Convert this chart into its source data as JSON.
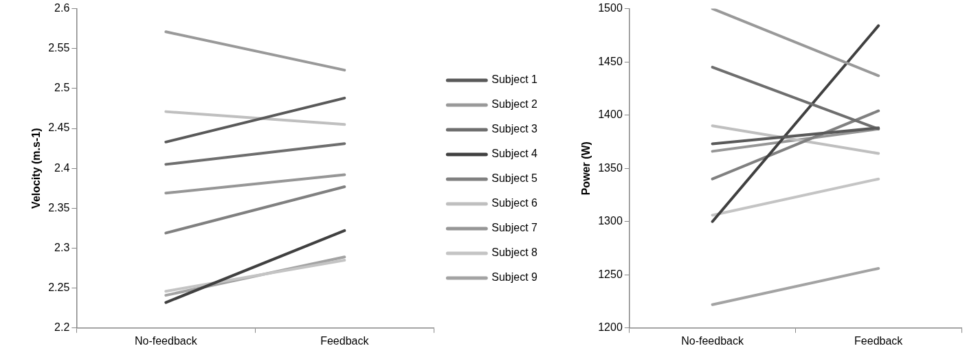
{
  "chart_data": [
    {
      "type": "line",
      "ylabel": "Velocity (m.s-1)",
      "categories": [
        "No-feedback",
        "Feedback"
      ],
      "ylim": [
        2.2,
        2.6
      ],
      "yticks": [
        2.2,
        2.25,
        2.3,
        2.35,
        2.4,
        2.45,
        2.5,
        2.55,
        2.6
      ],
      "grid": false,
      "legend": "right",
      "marker": "none",
      "line_style": "solid",
      "series": [
        {
          "name": "Subject 1",
          "color": "#595959",
          "values": [
            2.433,
            2.488
          ]
        },
        {
          "name": "Subject 2",
          "color": "#999999",
          "values": [
            2.571,
            2.523
          ]
        },
        {
          "name": "Subject 3",
          "color": "#6e6e6e",
          "values": [
            2.405,
            2.431
          ]
        },
        {
          "name": "Subject 4",
          "color": "#404040",
          "values": [
            2.232,
            2.322
          ]
        },
        {
          "name": "Subject 5",
          "color": "#808080",
          "values": [
            2.319,
            2.377
          ]
        },
        {
          "name": "Subject 6",
          "color": "#bfbfbf",
          "values": [
            2.471,
            2.455
          ]
        },
        {
          "name": "Subject 7",
          "color": "#969696",
          "values": [
            2.369,
            2.392
          ]
        },
        {
          "name": "Subject 8",
          "color": "#c4c4c4",
          "values": [
            2.246,
            2.285
          ]
        },
        {
          "name": "Subject 9",
          "color": "#a3a3a3",
          "values": [
            2.241,
            2.289
          ]
        }
      ]
    },
    {
      "type": "line",
      "ylabel": "Power (W)",
      "categories": [
        "No-feedback",
        "Feedback"
      ],
      "ylim": [
        1200,
        1500
      ],
      "yticks": [
        1200,
        1250,
        1300,
        1350,
        1400,
        1450,
        1500
      ],
      "grid": false,
      "legend": false,
      "marker": "none",
      "line_style": "solid",
      "series": [
        {
          "color": "#595959",
          "values": [
            1373,
            1388
          ]
        },
        {
          "color": "#999999",
          "values": [
            1500,
            1437
          ]
        },
        {
          "color": "#6e6e6e",
          "values": [
            1445,
            1387
          ]
        },
        {
          "color": "#404040",
          "values": [
            1300,
            1484
          ]
        },
        {
          "color": "#808080",
          "values": [
            1340,
            1404
          ]
        },
        {
          "color": "#bfbfbf",
          "values": [
            1390,
            1364
          ]
        },
        {
          "color": "#969696",
          "values": [
            1366,
            1387
          ]
        },
        {
          "color": "#c4c4c4",
          "values": [
            1306,
            1340
          ]
        },
        {
          "color": "#a3a3a3",
          "values": [
            1222,
            1256
          ]
        }
      ]
    }
  ]
}
